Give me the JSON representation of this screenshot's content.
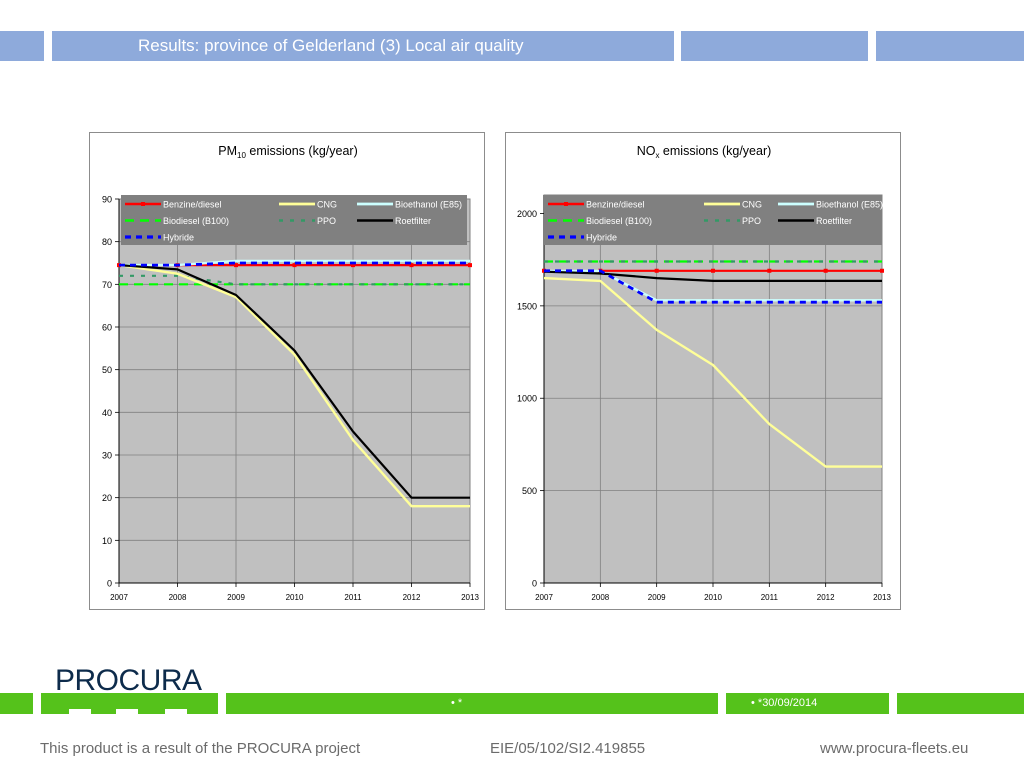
{
  "header": {
    "title": "Results: province of Gelderland (3) Local air quality"
  },
  "colors": {
    "header_bar": "#8eaadb",
    "plot_bg": "#c0c0c0",
    "legend_bg": "#808080",
    "green_bar": "#55c21b",
    "benzine": "#ff0000",
    "cng": "#ffff99",
    "bioethanol": "#ccffff",
    "biodiesel": "#00ff00",
    "ppo": "#339966",
    "roetfilter": "#000000",
    "hybride": "#0000ff"
  },
  "chart_data": [
    {
      "type": "line",
      "title": "PM10 emissions (kg/year)",
      "title_main": "PM",
      "title_sub": "10",
      "title_rest": " emissions (kg/year)",
      "x": [
        "2007",
        "2008",
        "2009",
        "2010",
        "2011",
        "2012",
        "2013"
      ],
      "ylim": [
        0,
        90
      ],
      "yticks": [
        0,
        10,
        20,
        30,
        40,
        50,
        60,
        70,
        80,
        90
      ],
      "grid": true,
      "legend_position": "top",
      "series": [
        {
          "name": "Benzine/diesel",
          "values": [
            74.5,
            74.5,
            74.5,
            74.5,
            74.5,
            74.5,
            74.5
          ]
        },
        {
          "name": "CNG",
          "values": [
            74.5,
            72.5,
            67,
            53.5,
            33.5,
            18,
            18
          ]
        },
        {
          "name": "Bioethanol (E85)",
          "values": [
            74.5,
            74.5,
            75.5,
            75.5,
            75.5,
            75.5,
            75.5
          ]
        },
        {
          "name": "Biodiesel (B100)",
          "values": [
            70,
            70,
            70,
            70,
            70,
            70,
            70
          ]
        },
        {
          "name": "PPO",
          "values": [
            72,
            72,
            70,
            70,
            70,
            70,
            70
          ]
        },
        {
          "name": "Roetfilter",
          "values": [
            74.5,
            73.5,
            67.5,
            54.5,
            35.5,
            20,
            20
          ]
        },
        {
          "name": "Hybride",
          "values": [
            74.5,
            74.5,
            75,
            75,
            75,
            75,
            75
          ]
        }
      ]
    },
    {
      "type": "line",
      "title": "NOx emissions (kg/year)",
      "title_main": "NO",
      "title_sub": "x",
      "title_rest": " emissions (kg/year)",
      "x": [
        "2007",
        "2008",
        "2009",
        "2010",
        "2011",
        "2012",
        "2013"
      ],
      "ylim": [
        0,
        2100
      ],
      "yticks": [
        0,
        500,
        1000,
        1500,
        2000
      ],
      "grid": true,
      "legend_position": "top",
      "series": [
        {
          "name": "Benzine/diesel",
          "values": [
            1690,
            1690,
            1690,
            1690,
            1690,
            1690,
            1690
          ]
        },
        {
          "name": "CNG",
          "values": [
            1650,
            1635,
            1370,
            1180,
            860,
            630,
            630
          ]
        },
        {
          "name": "Bioethanol (E85)",
          "values": [
            1690,
            1690,
            1530,
            1530,
            1530,
            1530,
            1530
          ]
        },
        {
          "name": "Biodiesel (B100)",
          "values": [
            1740,
            1740,
            1740,
            1740,
            1740,
            1740,
            1740
          ]
        },
        {
          "name": "PPO",
          "values": [
            1740,
            1740,
            1740,
            1740,
            1740,
            1740,
            1740
          ]
        },
        {
          "name": "Roetfilter",
          "values": [
            1685,
            1675,
            1650,
            1635,
            1635,
            1635,
            1635
          ]
        },
        {
          "name": "Hybride",
          "values": [
            1690,
            1690,
            1520,
            1520,
            1520,
            1520,
            1520
          ]
        }
      ]
    }
  ],
  "bottom_bar": {
    "mid_text": "•       *",
    "date_text": "•         *30/09/2014"
  },
  "logo": {
    "text": "PROCURA"
  },
  "footer": {
    "left": "This product is a result of the PROCURA project",
    "center": "EIE/05/102/SI2.419855",
    "right": "www.procura-fleets.eu"
  }
}
